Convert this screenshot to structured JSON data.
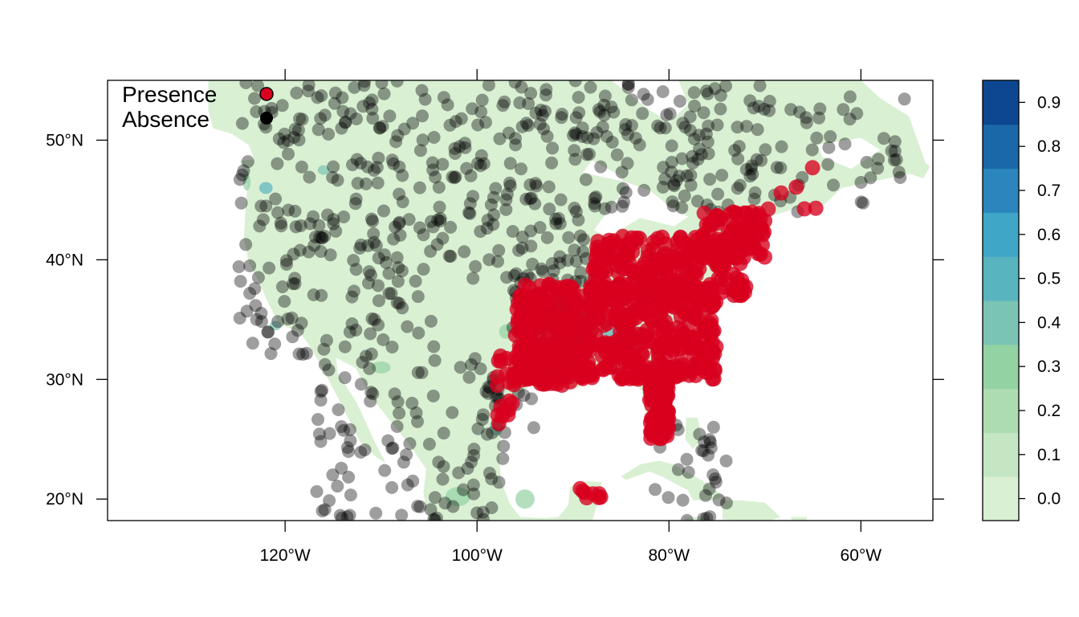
{
  "map": {
    "x_ticks": [
      {
        "lon": -120,
        "label": "120°W"
      },
      {
        "lon": -100,
        "label": "100°W"
      },
      {
        "lon": -80,
        "label": "80°W"
      },
      {
        "lon": -60,
        "label": "60°W"
      }
    ],
    "y_ticks": [
      {
        "lat": 20,
        "label": "20°N"
      },
      {
        "lat": 30,
        "label": "30°N"
      },
      {
        "lat": 40,
        "label": "40°N"
      },
      {
        "lat": 50,
        "label": "50°N"
      }
    ],
    "lon_range": [
      -138.5,
      -52.5
    ],
    "lat_range": [
      18.2,
      55
    ],
    "land_color": "#d9f0d3",
    "legend": [
      {
        "label": "Presence",
        "color": "#d7001e"
      },
      {
        "label": "Absence",
        "color": "#000000"
      }
    ]
  },
  "colorbar": {
    "labels": [
      "0.0",
      "0.1",
      "0.2",
      "0.3",
      "0.4",
      "0.5",
      "0.6",
      "0.7",
      "0.8",
      "0.9"
    ],
    "colors": [
      "#d9f0d3",
      "#c4e6c3",
      "#acdcb0",
      "#93d2a3",
      "#7ac4b4",
      "#58b4be",
      "#40a6c8",
      "#2a86bc",
      "#1b68a8",
      "#0d4791"
    ]
  }
}
